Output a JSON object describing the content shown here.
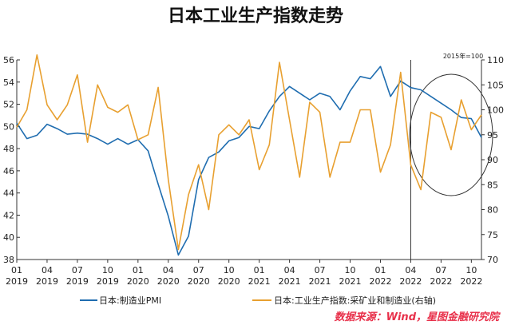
{
  "chart_data": {
    "type": "line",
    "title": "日本工业生产指数走势",
    "unit_note": "2015年=100",
    "source": "数据来源：Wind，星图金融研究院",
    "x": [
      "2019-01",
      "2019-02",
      "2019-03",
      "2019-04",
      "2019-05",
      "2019-06",
      "2019-07",
      "2019-08",
      "2019-09",
      "2019-10",
      "2019-11",
      "2019-12",
      "2020-01",
      "2020-02",
      "2020-03",
      "2020-04",
      "2020-05",
      "2020-06",
      "2020-07",
      "2020-08",
      "2020-09",
      "2020-10",
      "2020-11",
      "2020-12",
      "2021-01",
      "2021-02",
      "2021-03",
      "2021-04",
      "2021-05",
      "2021-06",
      "2021-07",
      "2021-08",
      "2021-09",
      "2021-10",
      "2021-11",
      "2021-12",
      "2022-01",
      "2022-02",
      "2022-03",
      "2022-04",
      "2022-05",
      "2022-06",
      "2022-07",
      "2022-08",
      "2022-09",
      "2022-10",
      "2022-11"
    ],
    "x_ticks": [
      {
        "month": "01",
        "year": "2019"
      },
      {
        "month": "04",
        "year": "2019"
      },
      {
        "month": "07",
        "year": "2019"
      },
      {
        "month": "10",
        "year": "2019"
      },
      {
        "month": "01",
        "year": "2020"
      },
      {
        "month": "04",
        "year": "2020"
      },
      {
        "month": "07",
        "year": "2020"
      },
      {
        "month": "10",
        "year": "2020"
      },
      {
        "month": "01",
        "year": "2021"
      },
      {
        "month": "04",
        "year": "2021"
      },
      {
        "month": "07",
        "year": "2021"
      },
      {
        "month": "10",
        "year": "2021"
      },
      {
        "month": "01",
        "year": "2022"
      },
      {
        "month": "04",
        "year": "2022"
      },
      {
        "month": "07",
        "year": "2022"
      },
      {
        "month": "10",
        "year": "2022"
      }
    ],
    "left_axis": {
      "ylim": [
        38,
        56
      ],
      "ticks": [
        38,
        40,
        42,
        44,
        46,
        48,
        50,
        52,
        54,
        56
      ]
    },
    "right_axis": {
      "ylim": [
        70,
        110
      ],
      "ticks": [
        70,
        75,
        80,
        85,
        90,
        95,
        100,
        105,
        110
      ]
    },
    "series": [
      {
        "name": "日本:制造业PMI",
        "axis": "left",
        "color": "#1f6db0",
        "values": [
          50.3,
          48.9,
          49.2,
          50.2,
          49.8,
          49.3,
          49.4,
          49.3,
          48.9,
          48.4,
          48.9,
          48.4,
          48.8,
          47.8,
          44.8,
          41.9,
          38.4,
          40.1,
          45.2,
          47.2,
          47.7,
          48.7,
          49.0,
          50.0,
          49.8,
          51.4,
          52.7,
          53.6,
          53.0,
          52.4,
          53.0,
          52.7,
          51.5,
          53.2,
          54.5,
          54.3,
          55.4,
          52.7,
          54.1,
          53.5,
          53.3,
          52.7,
          52.1,
          51.5,
          50.8,
          50.7,
          49.0
        ]
      },
      {
        "name": "日本:工业生产指数:采矿业和制造业(右轴)",
        "axis": "right",
        "color": "#e8a030",
        "values": [
          96.5,
          100.0,
          111.0,
          101.0,
          98.0,
          101.0,
          107.0,
          93.5,
          105.0,
          100.5,
          99.5,
          101.0,
          94.0,
          95.0,
          104.5,
          86.0,
          72.0,
          83.0,
          89.0,
          80.0,
          95.0,
          97.0,
          95.0,
          98.0,
          88.0,
          93.0,
          109.5,
          98.0,
          86.5,
          101.5,
          99.5,
          86.5,
          93.5,
          93.5,
          100.0,
          100.0,
          87.5,
          93.0,
          107.5,
          89.0,
          84.0,
          99.5,
          98.5,
          92.0,
          102.0,
          96.0,
          99.0
        ]
      }
    ],
    "annotations": {
      "vertical_line_at": "2022-04",
      "ellipse_region": [
        "2022-05",
        "2022-11"
      ]
    },
    "legend_position": "bottom"
  }
}
